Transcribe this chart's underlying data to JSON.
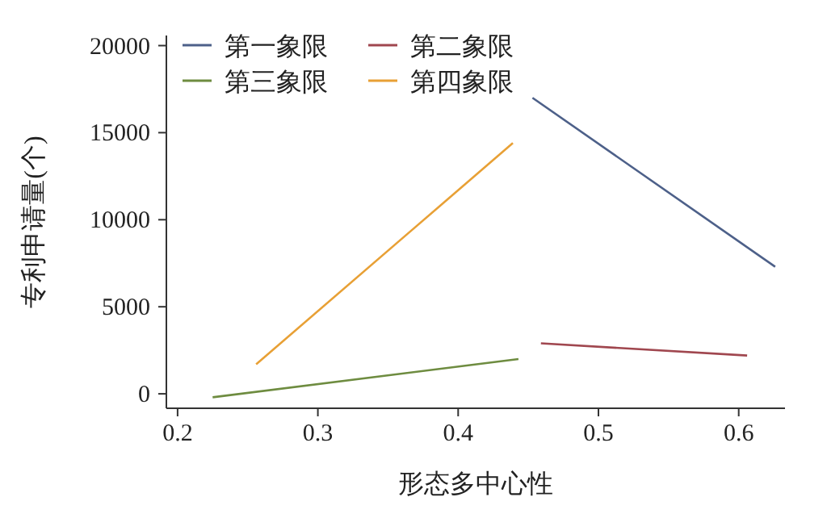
{
  "chart_data": {
    "type": "line",
    "xlabel": "形态多中心性",
    "ylabel": "专利申请量(个)",
    "xlim": [
      0.192,
      0.633
    ],
    "ylim": [
      -830,
      20580
    ],
    "xticks": [
      0.2,
      0.3,
      0.4,
      0.5,
      0.6
    ],
    "yticks": [
      0,
      5000,
      10000,
      15000,
      20000
    ],
    "grid": false,
    "legend": "top left",
    "marker": "none",
    "line_style": "solid",
    "series": [
      {
        "name": "第一象限",
        "color": "#4d6089",
        "x": [
          0.453,
          0.626
        ],
        "values": [
          17000,
          7300
        ]
      },
      {
        "name": "第二象限",
        "color": "#a0474f",
        "x": [
          0.459,
          0.606
        ],
        "values": [
          2900,
          2200
        ]
      },
      {
        "name": "第三象限",
        "color": "#6e8c40",
        "x": [
          0.225,
          0.443
        ],
        "values": [
          -200,
          2000
        ]
      },
      {
        "name": "第四象限",
        "color": "#e8a035",
        "x": [
          0.256,
          0.439
        ],
        "values": [
          1700,
          14400
        ]
      }
    ]
  }
}
